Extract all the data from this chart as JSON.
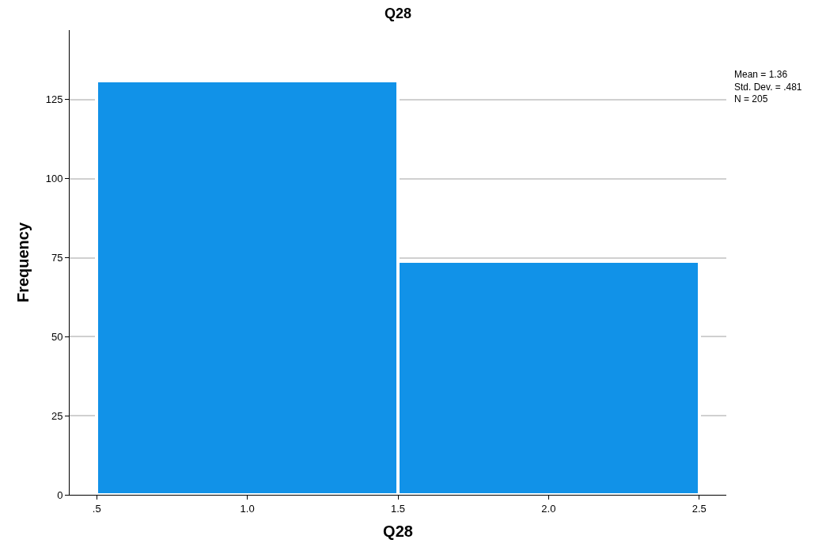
{
  "chart_data": {
    "type": "histogram",
    "title": "Q28",
    "xlabel": "Q28",
    "ylabel": "Frequency",
    "bins": [
      0.5,
      1.5,
      2.5
    ],
    "values": [
      131,
      74
    ],
    "color": "#1192e8",
    "xlim": [
      0.41,
      2.59
    ],
    "xticks": [
      {
        "value": 0.5,
        "label": ".5"
      },
      {
        "value": 1.0,
        "label": "1.0"
      },
      {
        "value": 1.5,
        "label": "1.5"
      },
      {
        "value": 2.0,
        "label": "2.0"
      },
      {
        "value": 2.5,
        "label": "2.5"
      }
    ],
    "ylim": [
      0,
      147
    ],
    "yticks": [
      0,
      25,
      50,
      75,
      100,
      125
    ],
    "grid": "y",
    "annotations": [
      "Mean = 1.36",
      "Std. Dev. = .481",
      "N = 205"
    ]
  }
}
